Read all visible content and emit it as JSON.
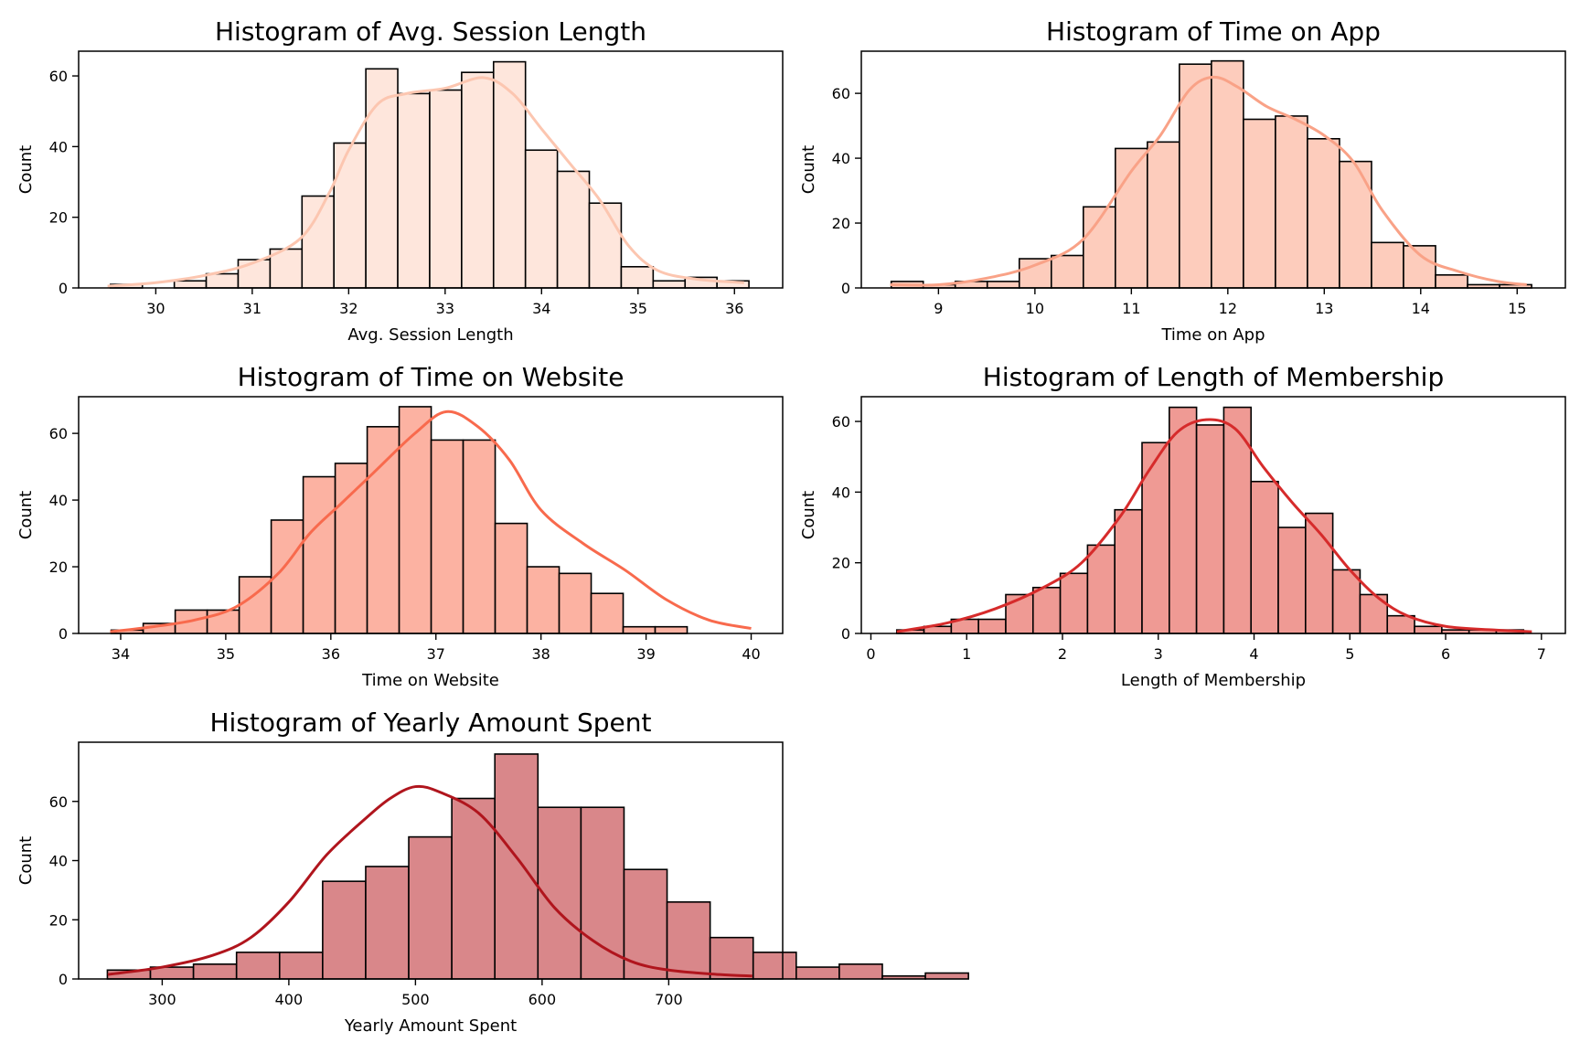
{
  "chart_data": [
    {
      "type": "bar",
      "title": "Histogram of Avg. Session Length",
      "xlabel": "Avg. Session Length",
      "ylabel": "Count",
      "xlim": [
        29.2,
        36.5
      ],
      "ylim": [
        0,
        67
      ],
      "xticks": [
        30,
        31,
        32,
        33,
        34,
        35,
        36
      ],
      "yticks": [
        0,
        20,
        40,
        60
      ],
      "bin_start": 29.53,
      "bin_width": 0.331,
      "counts": [
        1,
        0,
        2,
        4,
        8,
        11,
        26,
        41,
        62,
        55,
        56,
        61,
        64,
        39,
        33,
        24,
        6,
        2,
        3,
        2
      ],
      "kde_x": [
        29.5,
        30.0,
        30.5,
        31.0,
        31.5,
        31.8,
        32.0,
        32.3,
        32.6,
        33.0,
        33.4,
        33.7,
        34.0,
        34.3,
        34.6,
        34.9,
        35.2,
        35.6,
        36.1
      ],
      "kde_y": [
        0.5,
        1.5,
        3.5,
        7,
        14,
        27,
        39,
        52,
        55,
        56.5,
        59.5,
        55,
        45,
        35,
        25,
        12,
        5,
        2.5,
        1.5
      ],
      "fill": "#fee6dc",
      "kde_color": "#fcc6b0"
    },
    {
      "type": "bar",
      "title": "Histogram of Time on App",
      "xlabel": "Time on App",
      "ylabel": "Count",
      "xlim": [
        8.2,
        15.5
      ],
      "ylim": [
        0,
        73
      ],
      "xticks": [
        9,
        10,
        11,
        12,
        13,
        14,
        15
      ],
      "yticks": [
        0,
        20,
        40,
        60
      ],
      "bin_start": 8.51,
      "bin_width": 0.332,
      "counts": [
        2,
        1,
        2,
        2,
        9,
        10,
        25,
        43,
        45,
        69,
        70,
        52,
        53,
        46,
        39,
        14,
        13,
        4,
        1,
        1
      ],
      "kde_x": [
        8.5,
        9.0,
        9.5,
        10.0,
        10.5,
        11.0,
        11.3,
        11.6,
        11.85,
        12.1,
        12.4,
        12.7,
        13.0,
        13.3,
        13.6,
        14.0,
        14.4,
        14.8,
        15.1
      ],
      "kde_y": [
        1,
        1,
        3,
        7,
        15,
        36,
        47,
        61,
        65,
        62,
        56,
        52,
        47,
        39,
        24,
        10,
        5,
        2,
        1
      ],
      "fill": "#fdccbc",
      "kde_color": "#f9a287"
    },
    {
      "type": "bar",
      "title": "Histogram of Time on Website",
      "xlabel": "Time on Website",
      "ylabel": "Count",
      "xlim": [
        33.6,
        40.3
      ],
      "ylim": [
        0,
        71
      ],
      "xticks": [
        34,
        35,
        36,
        37,
        38,
        39,
        40
      ],
      "yticks": [
        0,
        20,
        40,
        60
      ],
      "bin_start": 33.91,
      "bin_width": 0.3045,
      "counts": [
        1,
        3,
        7,
        7,
        17,
        34,
        47,
        51,
        62,
        68,
        58,
        58,
        33,
        20,
        18,
        12,
        2,
        2
      ],
      "kde_x": [
        33.9,
        34.3,
        34.7,
        35.1,
        35.5,
        35.8,
        36.1,
        36.4,
        36.8,
        37.1,
        37.4,
        37.7,
        38.0,
        38.4,
        38.8,
        39.2,
        39.6,
        40.0
      ],
      "kde_y": [
        0.5,
        2,
        4,
        8,
        18,
        30,
        39,
        48,
        60,
        66.5,
        62,
        52,
        37,
        27,
        19,
        10,
        4,
        1.5
      ],
      "fill": "#fcb2a2",
      "kde_color": "#f86a4d"
    },
    {
      "type": "bar",
      "title": "Histogram of Length of Membership",
      "xlabel": "Length of Membership",
      "ylabel": "Count",
      "xlim": [
        -0.1,
        7.25
      ],
      "ylim": [
        0,
        67
      ],
      "xticks": [
        0,
        1,
        2,
        3,
        4,
        5,
        6,
        7
      ],
      "yticks": [
        0,
        20,
        40,
        60
      ],
      "bin_start": 0.27,
      "bin_width": 0.2845,
      "counts": [
        1,
        2,
        4,
        4,
        11,
        13,
        17,
        25,
        35,
        54,
        64,
        59,
        64,
        43,
        30,
        34,
        18,
        11,
        5,
        2,
        1,
        1,
        1
      ],
      "kde_x": [
        0.27,
        0.8,
        1.3,
        1.8,
        2.2,
        2.6,
        2.9,
        3.2,
        3.5,
        3.8,
        4.1,
        4.4,
        4.7,
        5.0,
        5.3,
        5.6,
        6.0,
        6.5,
        6.9
      ],
      "kde_y": [
        0.5,
        3,
        7,
        13,
        20,
        33,
        46,
        57,
        60.5,
        58,
        47,
        37,
        28,
        18,
        10,
        5,
        2,
        1,
        0.5
      ],
      "fill": "#ef9a94",
      "kde_color": "#d62b2b"
    },
    {
      "type": "bar",
      "title": "Histogram of Yearly Amount Spent",
      "xlabel": "Yearly Amount Spent",
      "ylabel": "Count",
      "xlim": [
        234,
        790
      ],
      "ylim": [
        0,
        80
      ],
      "xticks": [
        300,
        400,
        500,
        600,
        700
      ],
      "yticks": [
        0,
        20,
        40,
        60
      ],
      "bin_start": 256.7,
      "bin_width": 34.0,
      "counts": [
        3,
        4,
        5,
        9,
        9,
        33,
        38,
        48,
        61,
        76,
        58,
        58,
        37,
        26,
        14,
        9,
        4,
        5,
        1,
        2
      ],
      "kde_x": [
        257,
        300,
        340,
        370,
        400,
        430,
        460,
        480,
        500,
        520,
        550,
        580,
        610,
        640,
        670,
        700,
        740,
        766
      ],
      "kde_y": [
        1.5,
        4,
        8,
        14,
        26,
        42,
        54,
        61,
        65,
        63,
        56,
        41,
        24,
        13,
        6,
        3,
        1.5,
        1
      ],
      "fill": "#d9878a",
      "kde_color": "#b0151d"
    }
  ]
}
